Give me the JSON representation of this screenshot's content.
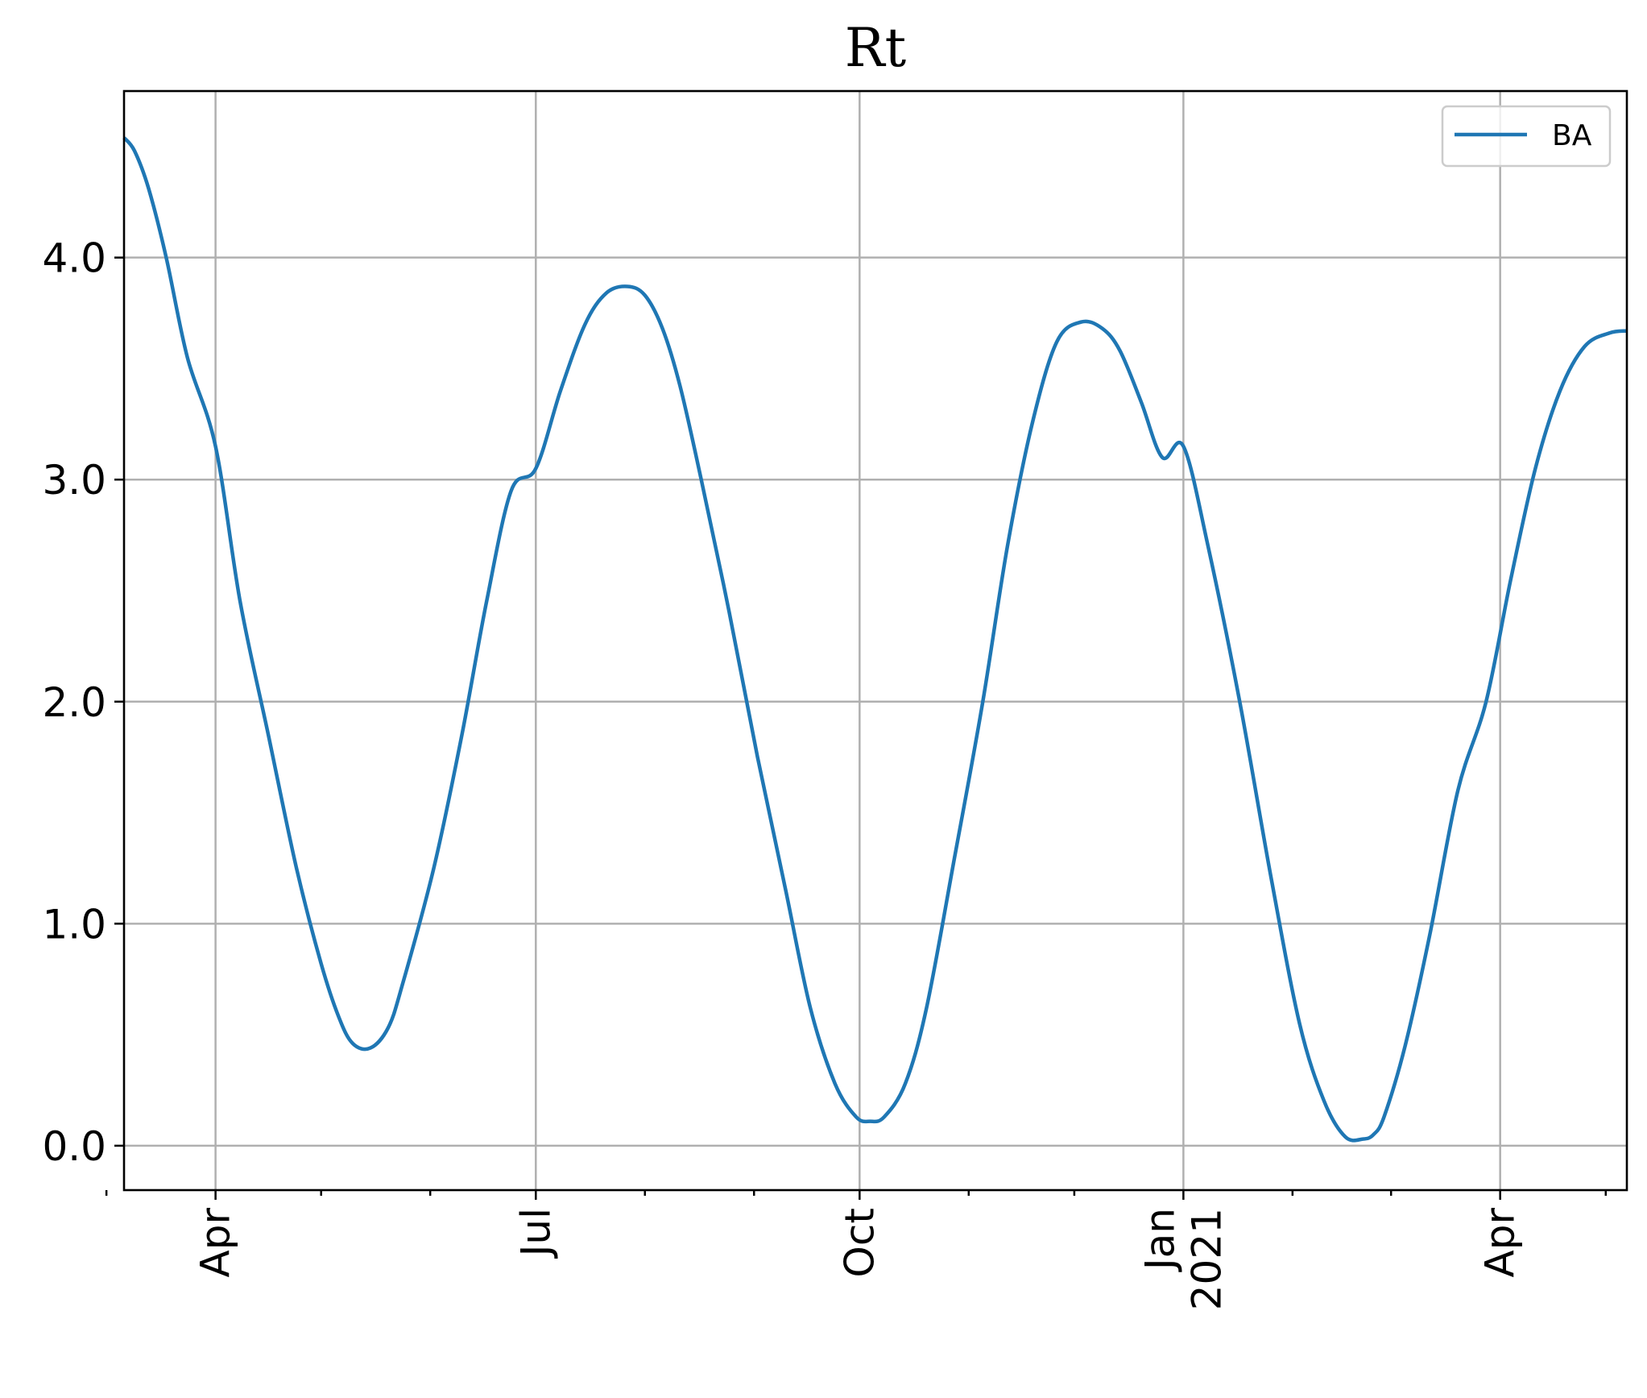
{
  "chart_data": {
    "type": "line",
    "title": "Rt",
    "xlabel": "",
    "ylabel": "",
    "x_range": [
      "2020-03-06",
      "2021-05-07"
    ],
    "ylim": [
      -0.2,
      4.75
    ],
    "grid": true,
    "legend_position": "top-right",
    "colors": {
      "line": "#1f77b4"
    },
    "y_ticks": [
      {
        "value": 0.0,
        "label": "0.0"
      },
      {
        "value": 1.0,
        "label": "1.0"
      },
      {
        "value": 2.0,
        "label": "2.0"
      },
      {
        "value": 3.0,
        "label": "3.0"
      },
      {
        "value": 4.0,
        "label": "4.0"
      }
    ],
    "x_major_ticks": [
      {
        "date": "2020-04-01",
        "label": "Apr"
      },
      {
        "date": "2020-07-01",
        "label": "Jul"
      },
      {
        "date": "2020-10-01",
        "label": "Oct"
      },
      {
        "date": "2021-01-01",
        "label": "Jan\n2021"
      },
      {
        "date": "2021-04-01",
        "label": "Apr"
      }
    ],
    "x_minor_ticks": [
      "2020-03-01",
      "2020-05-01",
      "2020-06-01",
      "2020-08-01",
      "2020-09-01",
      "2020-11-01",
      "2020-12-01",
      "2021-02-01",
      "2021-03-01",
      "2021-05-01"
    ],
    "series": [
      {
        "name": "BA",
        "x": [
          "2020-03-06",
          "2020-03-09",
          "2020-03-13",
          "2020-03-18",
          "2020-03-24",
          "2020-04-01",
          "2020-04-08",
          "2020-04-16",
          "2020-04-24",
          "2020-05-01",
          "2020-05-06",
          "2020-05-10",
          "2020-05-15",
          "2020-05-20",
          "2020-05-24",
          "2020-06-02",
          "2020-06-10",
          "2020-06-17",
          "2020-06-24",
          "2020-07-01",
          "2020-07-08",
          "2020-07-15",
          "2020-07-21",
          "2020-07-27",
          "2020-08-01",
          "2020-08-06",
          "2020-08-11",
          "2020-08-17",
          "2020-08-25",
          "2020-09-02",
          "2020-09-10",
          "2020-09-17",
          "2020-09-24",
          "2020-09-30",
          "2020-10-04",
          "2020-10-08",
          "2020-10-14",
          "2020-10-20",
          "2020-10-28",
          "2020-11-05",
          "2020-11-12",
          "2020-11-19",
          "2020-11-26",
          "2020-12-03",
          "2020-12-09",
          "2020-12-14",
          "2020-12-20",
          "2020-12-26",
          "2021-01-01",
          "2021-01-08",
          "2021-01-17",
          "2021-01-26",
          "2021-02-03",
          "2021-02-10",
          "2021-02-16",
          "2021-02-21",
          "2021-02-24",
          "2021-02-27",
          "2021-03-05",
          "2021-03-12",
          "2021-03-20",
          "2021-03-28",
          "2021-04-04",
          "2021-04-11",
          "2021-04-18",
          "2021-04-25",
          "2021-05-02",
          "2021-05-07"
        ],
        "y": [
          4.54,
          4.48,
          4.31,
          4.0,
          3.55,
          3.15,
          2.45,
          1.85,
          1.25,
          0.82,
          0.58,
          0.46,
          0.44,
          0.53,
          0.72,
          1.25,
          1.85,
          2.45,
          2.95,
          3.05,
          3.4,
          3.7,
          3.84,
          3.87,
          3.83,
          3.68,
          3.42,
          3.0,
          2.4,
          1.75,
          1.15,
          0.62,
          0.28,
          0.13,
          0.11,
          0.13,
          0.28,
          0.62,
          1.3,
          2.0,
          2.7,
          3.25,
          3.62,
          3.71,
          3.68,
          3.58,
          3.35,
          3.1,
          3.15,
          2.7,
          2.0,
          1.2,
          0.55,
          0.2,
          0.04,
          0.03,
          0.05,
          0.13,
          0.45,
          0.95,
          1.6,
          2.0,
          2.55,
          3.05,
          3.4,
          3.6,
          3.66,
          3.67
        ]
      }
    ]
  }
}
